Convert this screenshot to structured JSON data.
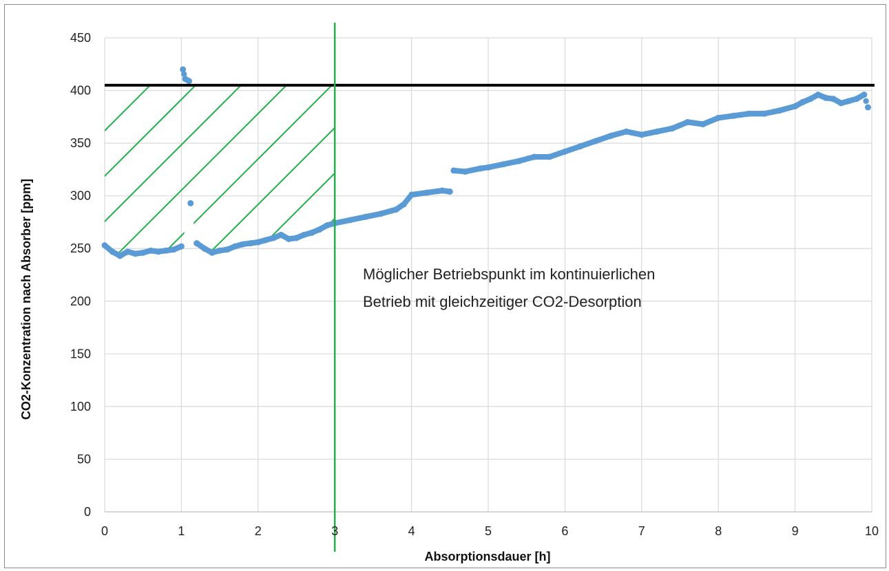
{
  "chart_data": {
    "type": "scatter",
    "title": "",
    "xlabel": "Absorptionsdauer  [h]",
    "ylabel": "CO2-Konzentration nach Absorber [ppm]",
    "xlim": [
      0,
      10
    ],
    "ylim": [
      0,
      450
    ],
    "x_ticks": [
      "0",
      "1",
      "2",
      "3",
      "4",
      "5",
      "6",
      "7",
      "8",
      "9",
      "10"
    ],
    "y_ticks": [
      "0",
      "50",
      "100",
      "150",
      "200",
      "250",
      "300",
      "350",
      "400",
      "450"
    ],
    "grid": true,
    "legend": "none",
    "series": [
      {
        "color": "#5b9bd5",
        "x": [
          0.0,
          0.1,
          0.2,
          0.3,
          0.4,
          0.5,
          0.6,
          0.7,
          0.8,
          0.9,
          1.0,
          1.02,
          1.05,
          1.1,
          1.12,
          1.2,
          1.3,
          1.4,
          1.5,
          1.6,
          1.7,
          1.8,
          1.9,
          2.0,
          2.1,
          2.2,
          2.3,
          2.4,
          2.5,
          2.6,
          2.7,
          2.8,
          2.9,
          3.0,
          3.2,
          3.4,
          3.6,
          3.8,
          3.9,
          4.0,
          4.2,
          4.4,
          4.5,
          4.55,
          4.7,
          4.9,
          5.0,
          5.2,
          5.4,
          5.6,
          5.8,
          6.0,
          6.2,
          6.4,
          6.6,
          6.8,
          7.0,
          7.2,
          7.4,
          7.6,
          7.8,
          8.0,
          8.2,
          8.4,
          8.6,
          8.8,
          9.0,
          9.1,
          9.2,
          9.3,
          9.4,
          9.5,
          9.6,
          9.7,
          9.8,
          9.9,
          9.95
        ],
        "y": [
          253,
          247,
          243,
          247,
          245,
          246,
          248,
          247,
          248,
          249,
          252,
          420,
          411,
          409,
          293,
          255,
          250,
          246,
          248,
          249,
          252,
          254,
          255,
          256,
          258,
          260,
          263,
          259,
          260,
          263,
          265,
          268,
          272,
          274,
          277,
          280,
          283,
          287,
          292,
          301,
          303,
          305,
          304,
          324,
          323,
          326,
          327,
          330,
          333,
          337,
          337,
          342,
          347,
          352,
          357,
          361,
          358,
          361,
          364,
          370,
          368,
          374,
          376,
          378,
          378,
          381,
          385,
          389,
          392,
          396,
          393,
          392,
          388,
          390,
          392,
          396,
          384
        ]
      }
    ],
    "reference_line_y": 405,
    "reference_line_color": "#000000",
    "marker_line_x": 3,
    "marker_line_color": "#22b04b",
    "hatch_region": {
      "x_from": 0,
      "x_to": 3,
      "y_top": 405,
      "color": "#22b04b"
    },
    "annotation": {
      "line1": "Möglicher Betriebspunkt im kontinuierlichen",
      "line2": "Betrieb mit gleichzeitiger CO2-Desorption"
    }
  }
}
